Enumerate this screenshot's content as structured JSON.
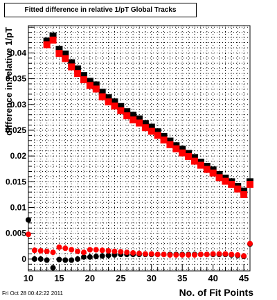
{
  "title": "Fitted difference in relative 1/pT  Global Tracks",
  "footer": "Fri Oct 28 00:42:22 2011",
  "chart_data": {
    "type": "scatter",
    "xlabel": "No. of Fit Points",
    "ylabel": "difference in relative 1/pT",
    "xlim": [
      10,
      46
    ],
    "ylim": [
      -0.0023,
      0.0453
    ],
    "x_ticks": [
      10,
      15,
      20,
      25,
      30,
      35,
      40,
      45
    ],
    "y_ticks": [
      0,
      0.005,
      0.01,
      0.015,
      0.02,
      0.025,
      0.03,
      0.035,
      0.04
    ],
    "y_tick_labels": [
      "0",
      "0.005",
      "0.01",
      "0.015",
      "0.02",
      "0.025",
      "0.03",
      "0.035",
      "0.04"
    ],
    "grid": true,
    "series": [
      {
        "marker": "square",
        "color": "#000000",
        "points": [
          [
            13,
            0.0423
          ],
          [
            14,
            0.0433
          ],
          [
            15,
            0.0407
          ],
          [
            16,
            0.0398
          ],
          [
            17,
            0.0381
          ],
          [
            18,
            0.0369
          ],
          [
            19,
            0.0356
          ],
          [
            20,
            0.0345
          ],
          [
            21,
            0.0338
          ],
          [
            22,
            0.0324
          ],
          [
            23,
            0.0313
          ],
          [
            24,
            0.0305
          ],
          [
            25,
            0.0296
          ],
          [
            26,
            0.0286
          ],
          [
            27,
            0.0279
          ],
          [
            28,
            0.0272
          ],
          [
            29,
            0.0263
          ],
          [
            30,
            0.0256
          ],
          [
            31,
            0.0247
          ],
          [
            32,
            0.0238
          ],
          [
            33,
            0.0229
          ],
          [
            34,
            0.022
          ],
          [
            35,
            0.0213
          ],
          [
            36,
            0.0205
          ],
          [
            37,
            0.0197
          ],
          [
            38,
            0.0188
          ],
          [
            39,
            0.018
          ],
          [
            40,
            0.0173
          ],
          [
            41,
            0.0164
          ],
          [
            42,
            0.0157
          ],
          [
            43,
            0.015
          ],
          [
            44,
            0.0141
          ],
          [
            45,
            0.0132
          ],
          [
            46,
            0.015
          ]
        ]
      },
      {
        "marker": "square",
        "color": "#ff0000",
        "points": [
          [
            13,
            0.0416
          ],
          [
            14,
            0.0425
          ],
          [
            15,
            0.0399
          ],
          [
            16,
            0.0389
          ],
          [
            17,
            0.0373
          ],
          [
            18,
            0.036
          ],
          [
            19,
            0.0348
          ],
          [
            20,
            0.0337
          ],
          [
            21,
            0.033
          ],
          [
            22,
            0.0315
          ],
          [
            23,
            0.0305
          ],
          [
            24,
            0.0297
          ],
          [
            25,
            0.0288
          ],
          [
            26,
            0.0278
          ],
          [
            27,
            0.027
          ],
          [
            28,
            0.0264
          ],
          [
            29,
            0.0255
          ],
          [
            30,
            0.0248
          ],
          [
            31,
            0.024
          ],
          [
            32,
            0.0231
          ],
          [
            33,
            0.0222
          ],
          [
            34,
            0.0214
          ],
          [
            35,
            0.0206
          ],
          [
            36,
            0.0199
          ],
          [
            37,
            0.019
          ],
          [
            38,
            0.0182
          ],
          [
            39,
            0.0174
          ],
          [
            40,
            0.0167
          ],
          [
            41,
            0.0158
          ],
          [
            42,
            0.0151
          ],
          [
            43,
            0.0145
          ],
          [
            44,
            0.0136
          ],
          [
            45,
            0.0125
          ],
          [
            46,
            0.0145
          ]
        ]
      },
      {
        "marker": "circle",
        "color": "#000000",
        "points": [
          [
            10,
            0.0076
          ],
          [
            11,
            0.0
          ],
          [
            12,
            0.0
          ],
          [
            13,
            -0.0002
          ],
          [
            14,
            -0.0017
          ],
          [
            15,
            -0.0001
          ],
          [
            16,
            -0.0002
          ],
          [
            17,
            -0.0002
          ],
          [
            18,
            0.0
          ],
          [
            19,
            0.0004
          ],
          [
            20,
            0.0004
          ],
          [
            21,
            0.0005
          ],
          [
            22,
            0.0006
          ],
          [
            23,
            0.0007
          ],
          [
            24,
            0.0008
          ],
          [
            25,
            0.0009
          ],
          [
            26,
            0.0009
          ],
          [
            27,
            0.0009
          ],
          [
            28,
            0.0009
          ],
          [
            29,
            0.0009
          ],
          [
            30,
            0.0009
          ],
          [
            31,
            0.0009
          ],
          [
            32,
            0.0009
          ],
          [
            33,
            0.0009
          ],
          [
            34,
            0.0009
          ],
          [
            35,
            0.0009
          ],
          [
            36,
            0.0009
          ],
          [
            37,
            0.0009
          ],
          [
            38,
            0.0009
          ],
          [
            39,
            0.0009
          ],
          [
            40,
            0.0009
          ],
          [
            41,
            0.0009
          ],
          [
            42,
            0.0009
          ],
          [
            43,
            0.0008
          ],
          [
            44,
            0.0007
          ],
          [
            45,
            0.0005
          ],
          [
            46,
            0.0029
          ]
        ]
      },
      {
        "marker": "circle",
        "color": "#ff0000",
        "points": [
          [
            10,
            0.0048
          ],
          [
            11,
            0.0017
          ],
          [
            12,
            0.0016
          ],
          [
            13,
            0.0015
          ],
          [
            14,
            0.0013
          ],
          [
            15,
            0.0023
          ],
          [
            16,
            0.0021
          ],
          [
            17,
            0.0018
          ],
          [
            18,
            0.0015
          ],
          [
            19,
            0.0013
          ],
          [
            20,
            0.0018
          ],
          [
            21,
            0.0018
          ],
          [
            22,
            0.0017
          ],
          [
            23,
            0.0016
          ],
          [
            24,
            0.0015
          ],
          [
            25,
            0.0014
          ],
          [
            26,
            0.0013
          ],
          [
            27,
            0.0012
          ],
          [
            28,
            0.0011
          ],
          [
            29,
            0.001
          ],
          [
            30,
            0.001
          ],
          [
            31,
            0.0009
          ],
          [
            32,
            0.0009
          ],
          [
            33,
            0.0008
          ],
          [
            34,
            0.0008
          ],
          [
            35,
            0.0008
          ],
          [
            36,
            0.0008
          ],
          [
            37,
            0.0008
          ],
          [
            38,
            0.0009
          ],
          [
            39,
            0.0009
          ],
          [
            40,
            0.001
          ],
          [
            41,
            0.001
          ],
          [
            42,
            0.001
          ],
          [
            43,
            0.0009
          ],
          [
            44,
            0.0008
          ],
          [
            45,
            0.0006
          ],
          [
            46,
            0.003
          ]
        ]
      }
    ]
  }
}
